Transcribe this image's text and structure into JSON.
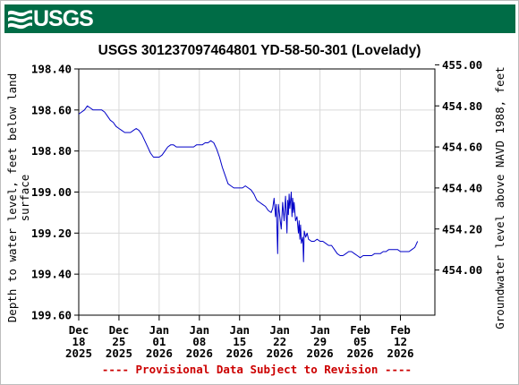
{
  "header": {
    "logo_text": "USGS",
    "bg_color": "#006c46"
  },
  "chart_data": {
    "type": "line",
    "title": "USGS 301237097464801 YD-58-50-301 (Lovelady)",
    "ylabel": "Depth to water level, feet below land surface",
    "ylabel_right": "Groundwater level above NAVD 1988, feet",
    "footer": "---- Provisional Data Subject to Revision ----",
    "ylim": [
      198.4,
      199.6
    ],
    "y_ticks": [
      "198.40",
      "198.60",
      "198.80",
      "199.00",
      "199.20",
      "199.40",
      "199.60"
    ],
    "y_tick_values": [
      198.4,
      198.6,
      198.8,
      199.0,
      199.2,
      199.4,
      199.6
    ],
    "y2_ticks": [
      "455.00",
      "454.80",
      "454.60",
      "454.40",
      "454.20",
      "454.00"
    ],
    "y2_tick_values": [
      455.0,
      454.8,
      454.6,
      454.4,
      454.2,
      454.0
    ],
    "xlim": [
      "2025-12-18",
      "2026-02-18"
    ],
    "x_ticks": [
      {
        "date": "2025-12-18",
        "label": [
          "Dec",
          "18",
          "2025"
        ]
      },
      {
        "date": "2025-12-25",
        "label": [
          "Dec",
          "25",
          "2025"
        ]
      },
      {
        "date": "2026-01-01",
        "label": [
          "Jan",
          "01",
          "2026"
        ]
      },
      {
        "date": "2026-01-08",
        "label": [
          "Jan",
          "08",
          "2026"
        ]
      },
      {
        "date": "2026-01-15",
        "label": [
          "Jan",
          "15",
          "2026"
        ]
      },
      {
        "date": "2026-01-22",
        "label": [
          "Jan",
          "22",
          "2026"
        ]
      },
      {
        "date": "2026-01-29",
        "label": [
          "Jan",
          "29",
          "2026"
        ]
      },
      {
        "date": "2026-02-05",
        "label": [
          "Feb",
          "05",
          "2026"
        ]
      },
      {
        "date": "2026-02-12",
        "label": [
          "Feb",
          "12",
          "2026"
        ]
      }
    ],
    "grid": true,
    "line_color": "#0000c8",
    "series": [
      {
        "points": [
          [
            "2025-12-18",
            198.62
          ],
          [
            "2025-12-18T12",
            198.61
          ],
          [
            "2025-12-19",
            198.6
          ],
          [
            "2025-12-19T12",
            198.58
          ],
          [
            "2025-12-20",
            198.59
          ],
          [
            "2025-12-20T12",
            198.6
          ],
          [
            "2025-12-21",
            198.6
          ],
          [
            "2025-12-22",
            198.6
          ],
          [
            "2025-12-22T12",
            198.61
          ],
          [
            "2025-12-23",
            198.63
          ],
          [
            "2025-12-23T12",
            198.65
          ],
          [
            "2025-12-24",
            198.66
          ],
          [
            "2025-12-24T12",
            198.68
          ],
          [
            "2025-12-25",
            198.69
          ],
          [
            "2025-12-25T12",
            198.7
          ],
          [
            "2025-12-26",
            198.71
          ],
          [
            "2025-12-26T12",
            198.71
          ],
          [
            "2025-12-27",
            198.71
          ],
          [
            "2025-12-27T12",
            198.7
          ],
          [
            "2025-12-28",
            198.69
          ],
          [
            "2025-12-28T12",
            198.7
          ],
          [
            "2025-12-29",
            198.72
          ],
          [
            "2025-12-29T12",
            198.75
          ],
          [
            "2025-12-30",
            198.78
          ],
          [
            "2025-12-30T12",
            198.81
          ],
          [
            "2025-12-31",
            198.83
          ],
          [
            "2025-12-31T12",
            198.83
          ],
          [
            "2026-01-01",
            198.83
          ],
          [
            "2026-01-01T12",
            198.82
          ],
          [
            "2026-01-02",
            198.8
          ],
          [
            "2026-01-02T12",
            198.78
          ],
          [
            "2026-01-03",
            198.77
          ],
          [
            "2026-01-03T12",
            198.77
          ],
          [
            "2026-01-04",
            198.78
          ],
          [
            "2026-01-05",
            198.78
          ],
          [
            "2026-01-06",
            198.78
          ],
          [
            "2026-01-07",
            198.78
          ],
          [
            "2026-01-07T12",
            198.77
          ],
          [
            "2026-01-08",
            198.77
          ],
          [
            "2026-01-08T12",
            198.77
          ],
          [
            "2026-01-09",
            198.76
          ],
          [
            "2026-01-09T12",
            198.76
          ],
          [
            "2026-01-10",
            198.75
          ],
          [
            "2026-01-10T12",
            198.76
          ],
          [
            "2026-01-11",
            198.79
          ],
          [
            "2026-01-11T12",
            198.83
          ],
          [
            "2026-01-12",
            198.88
          ],
          [
            "2026-01-12T12",
            198.92
          ],
          [
            "2026-01-13",
            198.96
          ],
          [
            "2026-01-13T12",
            198.97
          ],
          [
            "2026-01-14",
            198.98
          ],
          [
            "2026-01-14T12",
            198.98
          ],
          [
            "2026-01-15",
            198.98
          ],
          [
            "2026-01-15T12",
            198.98
          ],
          [
            "2026-01-16",
            198.97
          ],
          [
            "2026-01-16T12",
            198.98
          ],
          [
            "2026-01-17",
            198.99
          ],
          [
            "2026-01-17T12",
            199.01
          ],
          [
            "2026-01-18",
            199.04
          ],
          [
            "2026-01-18T12",
            199.05
          ],
          [
            "2026-01-19",
            199.06
          ],
          [
            "2026-01-19T12",
            199.07
          ],
          [
            "2026-01-20",
            199.09
          ],
          [
            "2026-01-20T12",
            199.1
          ],
          [
            "2026-01-20T18",
            199.08
          ],
          [
            "2026-01-21",
            199.03
          ],
          [
            "2026-01-21T06",
            199.12
          ],
          [
            "2026-01-21T09",
            199.06
          ],
          [
            "2026-01-21T12",
            199.17
          ],
          [
            "2026-01-21T15",
            199.3
          ],
          [
            "2026-01-21T18",
            199.06
          ],
          [
            "2026-01-22",
            199.12
          ],
          [
            "2026-01-22T06",
            199.18
          ],
          [
            "2026-01-22T12",
            199.05
          ],
          [
            "2026-01-22T18",
            199.14
          ],
          [
            "2026-01-23",
            199.02
          ],
          [
            "2026-01-23T06",
            199.2
          ],
          [
            "2026-01-23T09",
            199.04
          ],
          [
            "2026-01-23T12",
            199.11
          ],
          [
            "2026-01-23T15",
            199.01
          ],
          [
            "2026-01-23T18",
            199.08
          ],
          [
            "2026-01-24",
            199.0
          ],
          [
            "2026-01-24T03",
            199.12
          ],
          [
            "2026-01-24T06",
            199.03
          ],
          [
            "2026-01-24T09",
            199.1
          ],
          [
            "2026-01-24T12",
            199.05
          ],
          [
            "2026-01-24T18",
            199.14
          ],
          [
            "2026-01-25",
            199.12
          ],
          [
            "2026-01-25T06",
            199.2
          ],
          [
            "2026-01-25T09",
            199.14
          ],
          [
            "2026-01-25T12",
            199.23
          ],
          [
            "2026-01-25T15",
            199.16
          ],
          [
            "2026-01-25T18",
            199.25
          ],
          [
            "2026-01-26",
            199.22
          ],
          [
            "2026-01-26T03",
            199.34
          ],
          [
            "2026-01-26T06",
            199.19
          ],
          [
            "2026-01-26T12",
            199.22
          ],
          [
            "2026-01-26T18",
            199.2
          ],
          [
            "2026-01-27",
            199.23
          ],
          [
            "2026-01-27T12",
            199.24
          ],
          [
            "2026-01-28",
            199.24
          ],
          [
            "2026-01-28T12",
            199.23
          ],
          [
            "2026-01-29",
            199.24
          ],
          [
            "2026-01-29T12",
            199.24
          ],
          [
            "2026-01-30",
            199.25
          ],
          [
            "2026-01-30T12",
            199.26
          ],
          [
            "2026-01-31",
            199.26
          ],
          [
            "2026-01-31T12",
            199.28
          ],
          [
            "2026-02-01",
            199.3
          ],
          [
            "2026-02-01T12",
            199.31
          ],
          [
            "2026-02-02",
            199.31
          ],
          [
            "2026-02-02T12",
            199.3
          ],
          [
            "2026-02-03",
            199.29
          ],
          [
            "2026-02-03T12",
            199.29
          ],
          [
            "2026-02-04",
            199.3
          ],
          [
            "2026-02-04T12",
            199.31
          ],
          [
            "2026-02-05",
            199.32
          ],
          [
            "2026-02-05T12",
            199.31
          ],
          [
            "2026-02-06",
            199.31
          ],
          [
            "2026-02-06T12",
            199.31
          ],
          [
            "2026-02-07",
            199.31
          ],
          [
            "2026-02-07T12",
            199.3
          ],
          [
            "2026-02-08",
            199.3
          ],
          [
            "2026-02-08T12",
            199.3
          ],
          [
            "2026-02-09",
            199.29
          ],
          [
            "2026-02-09T12",
            199.29
          ],
          [
            "2026-02-10",
            199.28
          ],
          [
            "2026-02-10T12",
            199.28
          ],
          [
            "2026-02-11",
            199.28
          ],
          [
            "2026-02-11T12",
            199.28
          ],
          [
            "2026-02-12",
            199.29
          ],
          [
            "2026-02-12T12",
            199.29
          ],
          [
            "2026-02-13",
            199.29
          ],
          [
            "2026-02-13T12",
            199.29
          ],
          [
            "2026-02-14",
            199.28
          ],
          [
            "2026-02-14T12",
            199.27
          ],
          [
            "2026-02-15",
            199.24
          ]
        ]
      }
    ]
  }
}
